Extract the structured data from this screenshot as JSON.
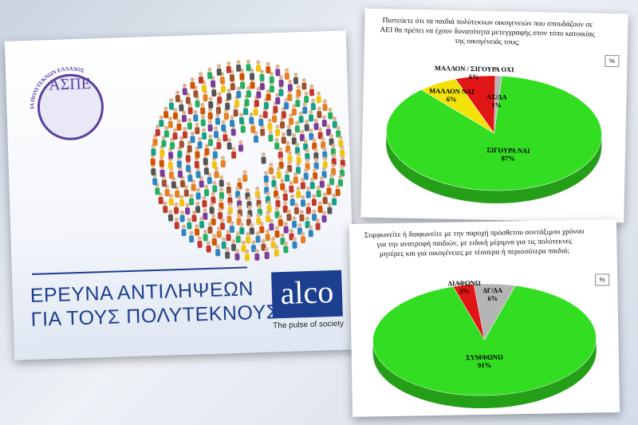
{
  "slide": {
    "logo_text": "ΑΣΠΕ",
    "logo_ring": "ΑΝΩΤΑΤΗ ΣΥΝΟΜΟΣΠΟΝΔΙΑ ΠΟΛΥΤΕΚΝΩΝ ΕΛΛΑΔΟΣ",
    "title_line1": "ΕΡΕΥΝΑ ΑΝΤΙΛΗΨΕΩΝ",
    "title_line2": "ΓΙΑ ΤΟΥΣ ΠΟΛΥΤΕΚΝΟΥΣ",
    "brand": "alco",
    "tagline": "The pulse of society"
  },
  "chart_data": [
    {
      "type": "pie",
      "title": "Πιστεύετε ότι τα παιδιά πολύτεκνων οικογενειών που σπουδάζουν σε ΑΕΙ θα πρέπει να έχουν δυνατότητα μετεγγραφής στον τόπο κατοικίας της οικογένειάς τους;",
      "legend": "%",
      "categories": [
        "ΑΣ/ΔΑ",
        "ΣΙΓΟΥΡΑ ΝΑΙ",
        "ΜΑΛΛΟΝ ΝΑΙ",
        "ΜΑΛΛΟΝ / ΣΙΓΟΥΡΑ ΟΧΙ"
      ],
      "values": [
        1,
        87,
        6,
        6
      ],
      "value_labels": [
        "1%",
        "87%",
        "6%",
        "6%"
      ],
      "colors": [
        "#b4b4b4",
        "#33dd22",
        "#f2e20a",
        "#e01515"
      ]
    },
    {
      "type": "pie",
      "title": "Συμφωνείτε ή διαφωνείτε με την παροχή πρόσθετου συντάξιμου χρόνου για την ανατροφή παιδιών, με ειδική μέριμνα για τις πολύτεκνες μητέρες και για οικογένειες με τέσσερα ή περισσότερα παιδιά;",
      "legend": "%",
      "categories": [
        "ΔΓ/ΔΑ",
        "ΣΥΜΦΩΝΩ",
        "ΔΙΑΦΩΝΩ"
      ],
      "values": [
        6,
        91,
        3
      ],
      "value_labels": [
        "6%",
        "91%",
        "3%"
      ],
      "colors": [
        "#b4b4b4",
        "#33dd22",
        "#e01515"
      ]
    }
  ]
}
